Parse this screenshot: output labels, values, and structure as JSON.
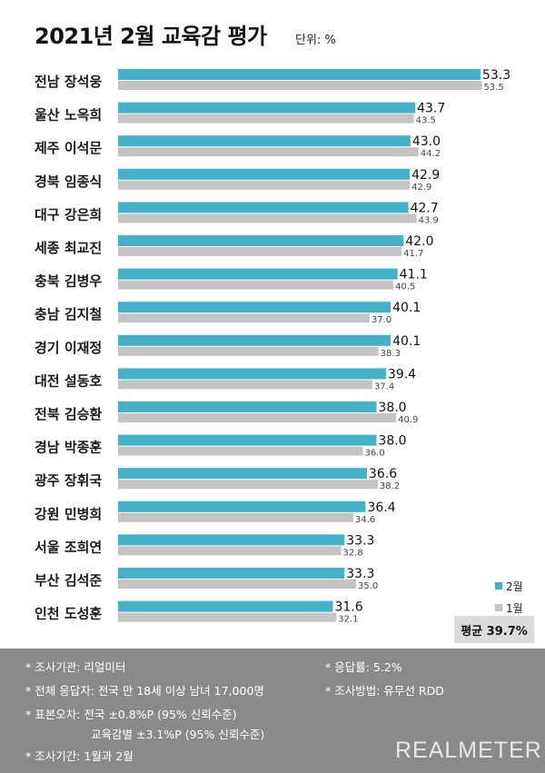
{
  "title": "2021년 2월 교육감 평가",
  "unit_label": "단위: %",
  "colors": {
    "feb": "#45b1c8",
    "jan": "#c4c4c4",
    "footer_bg": "#8a8a8a"
  },
  "chart_data": {
    "type": "bar",
    "orientation": "horizontal",
    "categories": [
      "전남 장석웅",
      "울산 노옥희",
      "제주 이석문",
      "경북 임종식",
      "대구 강은희",
      "세종 최교진",
      "충북 김병우",
      "충남 김지철",
      "경기 이재정",
      "대전 설동호",
      "전북 김승환",
      "경남 박종훈",
      "광주 장휘국",
      "강원 민병희",
      "서울 조희연",
      "부산 김석준",
      "인천 도성훈"
    ],
    "series": [
      {
        "name": "2월",
        "values": [
          53.3,
          43.7,
          43.0,
          42.9,
          42.7,
          42.0,
          41.1,
          40.1,
          40.1,
          39.4,
          38.0,
          38.0,
          36.6,
          36.4,
          33.3,
          33.3,
          31.6
        ]
      },
      {
        "name": "1월",
        "values": [
          53.5,
          43.5,
          44.2,
          42.9,
          43.9,
          41.7,
          40.5,
          37.0,
          38.3,
          37.4,
          40.9,
          36.0,
          38.2,
          34.6,
          32.8,
          35.0,
          32.1
        ]
      }
    ],
    "value_labels": {
      "feb": [
        "53.3",
        "43.7",
        "43.0",
        "42.9",
        "42.7",
        "42.0",
        "41.1",
        "40.1",
        "40.1",
        "39.4",
        "38.0",
        "38.0",
        "36.6",
        "36.4",
        "33.3",
        "33.3",
        "31.6"
      ],
      "jan": [
        "53.5",
        "43.5",
        "44.2",
        "42.9",
        "43.9",
        "41.7",
        "40.5",
        "37.0",
        "38.3",
        "37.4",
        "40.9",
        "36.0",
        "38.2",
        "34.6",
        "32.8",
        "35.0",
        "32.1"
      ]
    },
    "legend_position": "bottom-right",
    "grid": false
  },
  "legend": {
    "feb": "2월",
    "jan": "1월"
  },
  "average": "평균 39.7%",
  "footer": {
    "agency": "* 조사기관: 리얼미터",
    "response_rate": "* 응답률: 5.2%",
    "respondents": "* 전체 응답자: 전국 만 18세 이상 남녀 17,000명",
    "method": "* 조사방법: 유무선 RDD",
    "error_national": "* 표본오차: 전국 ±0.8%P (95% 신뢰수준)",
    "error_region": "교육감별 ±3.1%P (95% 신뢰수준)",
    "period": "* 조사기간: 1월과 2월",
    "brand": "REALMETER"
  }
}
